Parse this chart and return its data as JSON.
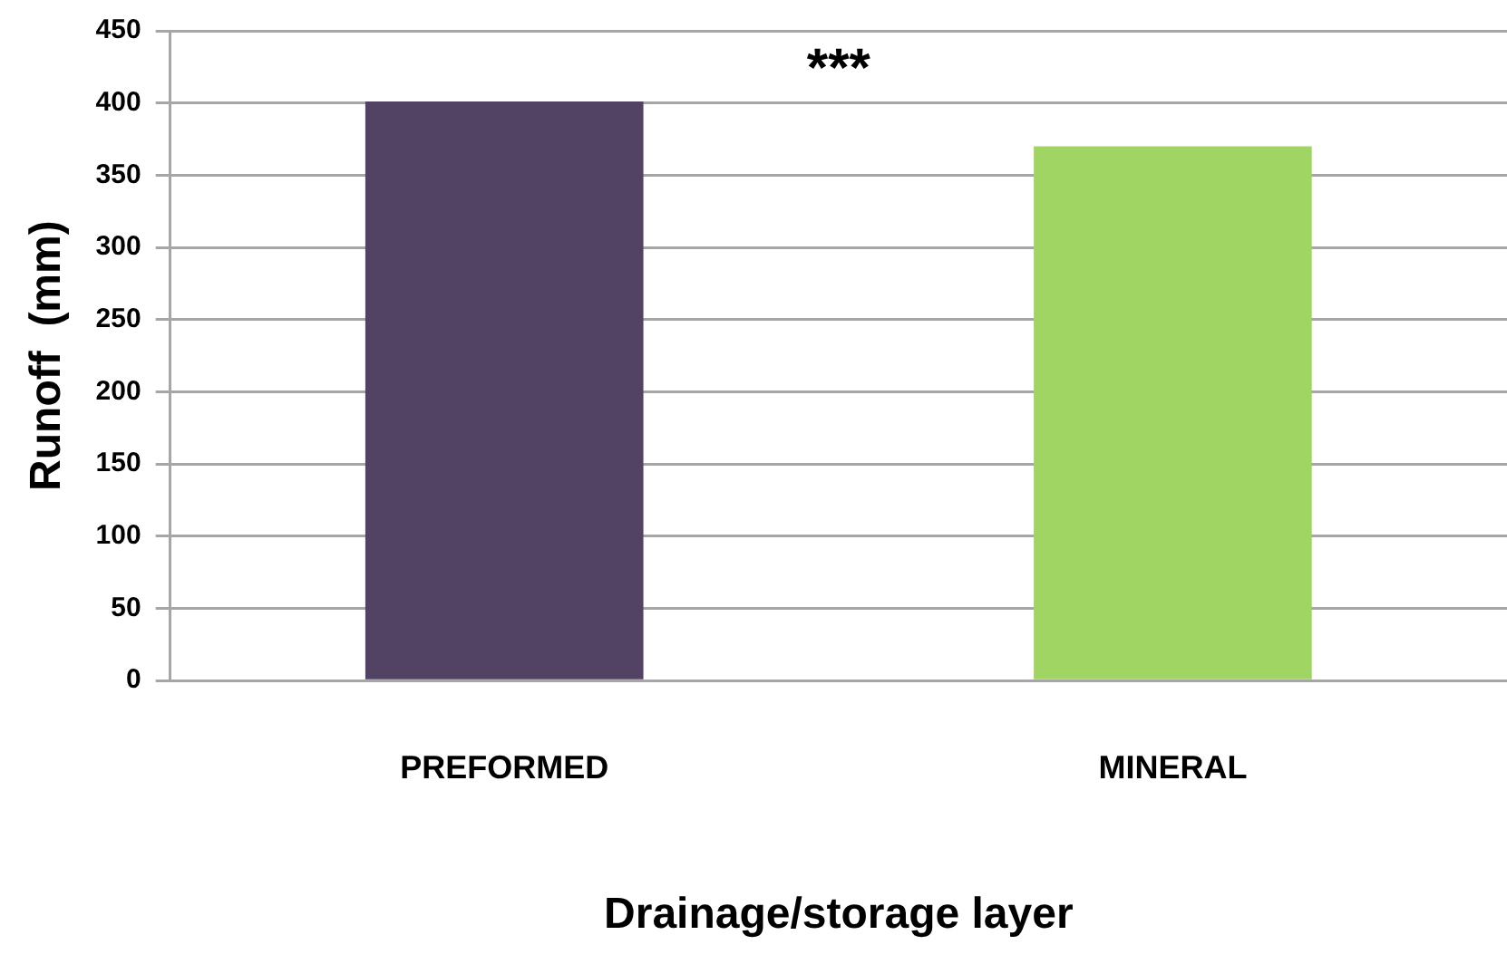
{
  "chart_data": {
    "type": "bar",
    "xlabel": "Drainage/storage layer",
    "ylabel": "Runoff  (mm)",
    "categories": [
      "PREFORMED",
      "MINERAL"
    ],
    "values": [
      401,
      370
    ],
    "colors": [
      "#524364",
      "#a1d563"
    ],
    "ylim": [
      0,
      450
    ],
    "yticks": [
      0,
      50,
      100,
      150,
      200,
      250,
      300,
      350,
      400,
      450
    ],
    "grid": "y",
    "legend": false,
    "annotations": [
      "***"
    ]
  }
}
